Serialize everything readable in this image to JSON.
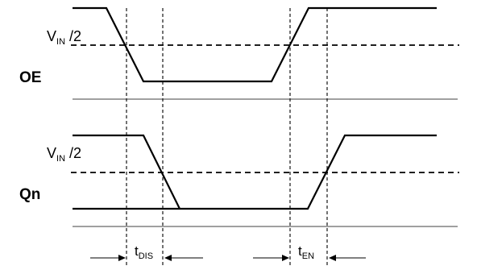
{
  "signals": {
    "oe": {
      "label": "OE"
    },
    "qn": {
      "label": "Qn"
    }
  },
  "reference_levels": {
    "oe": {
      "main": "V",
      "sub": "IN",
      "suffix": " /2"
    },
    "qn": {
      "main": "V",
      "sub": "IN",
      "suffix": " /2"
    }
  },
  "timings": {
    "disable": {
      "main": "t",
      "sub": "DIS"
    },
    "enable": {
      "main": "t",
      "sub": "EN"
    }
  }
}
